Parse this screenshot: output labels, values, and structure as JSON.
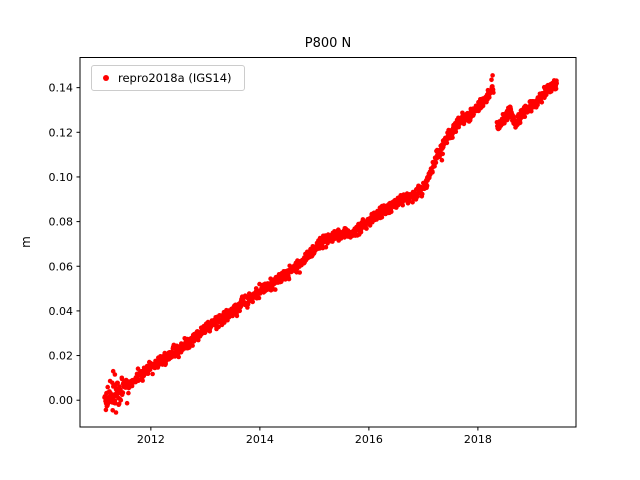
{
  "figure_title": "P800 N",
  "chart_data": {
    "type": "scatter",
    "title": "P800 N",
    "xlabel": "",
    "ylabel": "m",
    "xlim": [
      2010.7,
      2019.8
    ],
    "ylim": [
      -0.012,
      0.1535
    ],
    "xticks": [
      2012,
      2014,
      2016,
      2018
    ],
    "xtick_labels": [
      "2012",
      "2014",
      "2016",
      "2018"
    ],
    "yticks": [
      0.0,
      0.02,
      0.04,
      0.06,
      0.08,
      0.1,
      0.12,
      0.14
    ],
    "ytick_labels": [
      "0.00",
      "0.02",
      "0.04",
      "0.06",
      "0.08",
      "0.10",
      "0.12",
      "0.14"
    ],
    "grid": false,
    "legend": {
      "position": "upper left",
      "entries": [
        {
          "label": "repro2018a (IGS14)",
          "color": "#ff0000",
          "marker": "dot"
        }
      ]
    },
    "series": [
      {
        "name": "repro2018a (IGS14)",
        "color": "#ff0000",
        "marker_radius": 2.3,
        "x_start": 2011.15,
        "x_end": 2019.45,
        "x_step": 0.006,
        "noise_std": 0.0013,
        "early_noise": {
          "before": 2011.6,
          "std": 0.0028
        },
        "gaps": [
          [
            2018.285,
            2018.345
          ]
        ],
        "trend_anchors": [
          [
            2011.15,
            0.0005
          ],
          [
            2011.45,
            0.004
          ],
          [
            2011.75,
            0.01
          ],
          [
            2012.0,
            0.015
          ],
          [
            2012.3,
            0.019
          ],
          [
            2012.65,
            0.025
          ],
          [
            2013.0,
            0.032
          ],
          [
            2013.4,
            0.038
          ],
          [
            2013.75,
            0.044
          ],
          [
            2014.0,
            0.049
          ],
          [
            2014.35,
            0.054
          ],
          [
            2014.7,
            0.06
          ],
          [
            2014.95,
            0.066
          ],
          [
            2015.1,
            0.07
          ],
          [
            2015.25,
            0.0725
          ],
          [
            2015.5,
            0.074
          ],
          [
            2015.75,
            0.0755
          ],
          [
            2016.0,
            0.08
          ],
          [
            2016.2,
            0.0835
          ],
          [
            2016.45,
            0.0875
          ],
          [
            2016.65,
            0.0905
          ],
          [
            2016.85,
            0.0915
          ],
          [
            2017.0,
            0.095
          ],
          [
            2017.1,
            0.1
          ],
          [
            2017.25,
            0.109
          ],
          [
            2017.4,
            0.116
          ],
          [
            2017.55,
            0.1215
          ],
          [
            2017.7,
            0.1255
          ],
          [
            2017.85,
            0.128
          ],
          [
            2018.0,
            0.131
          ],
          [
            2018.15,
            0.1355
          ],
          [
            2018.27,
            0.14
          ],
          [
            2018.36,
            0.1225
          ],
          [
            2018.48,
            0.1255
          ],
          [
            2018.6,
            0.13
          ],
          [
            2018.68,
            0.124
          ],
          [
            2018.82,
            0.128
          ],
          [
            2018.95,
            0.131
          ],
          [
            2019.1,
            0.1345
          ],
          [
            2019.25,
            0.139
          ],
          [
            2019.4,
            0.1415
          ],
          [
            2019.45,
            0.142
          ]
        ],
        "outliers": [
          [
            2011.31,
            0.013
          ],
          [
            2011.34,
            0.0115
          ],
          [
            2011.3,
            -0.0045
          ],
          [
            2011.36,
            -0.0055
          ],
          [
            2011.41,
            -0.002
          ],
          [
            2011.47,
            0.0095
          ],
          [
            2017.34,
            0.1075
          ],
          [
            2018.25,
            0.1435
          ],
          [
            2018.27,
            0.1455
          ]
        ]
      }
    ]
  }
}
